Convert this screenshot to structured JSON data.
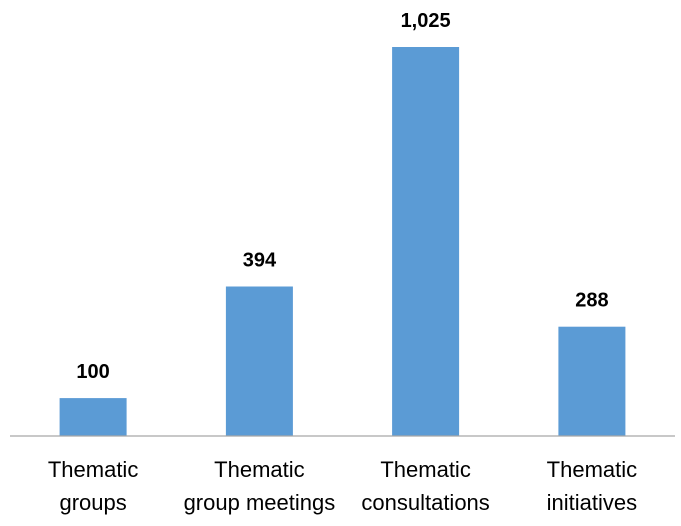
{
  "chart_data": {
    "type": "bar",
    "title": "",
    "xlabel": "",
    "ylabel": "",
    "categories": [
      [
        "Thematic",
        "groups"
      ],
      [
        "Thematic",
        "group meetings"
      ],
      [
        "Thematic",
        "consultations"
      ],
      [
        "Thematic",
        "initiatives"
      ]
    ],
    "values": [
      100,
      394,
      1025,
      288
    ],
    "value_labels": [
      "100",
      "394",
      "1,025",
      "288"
    ],
    "ylim": [
      0,
      1100
    ],
    "grid": false,
    "legend": "none",
    "colors": {
      "bar": "#5B9BD5",
      "axis": "#A6A6A6",
      "text": "#000000"
    }
  }
}
